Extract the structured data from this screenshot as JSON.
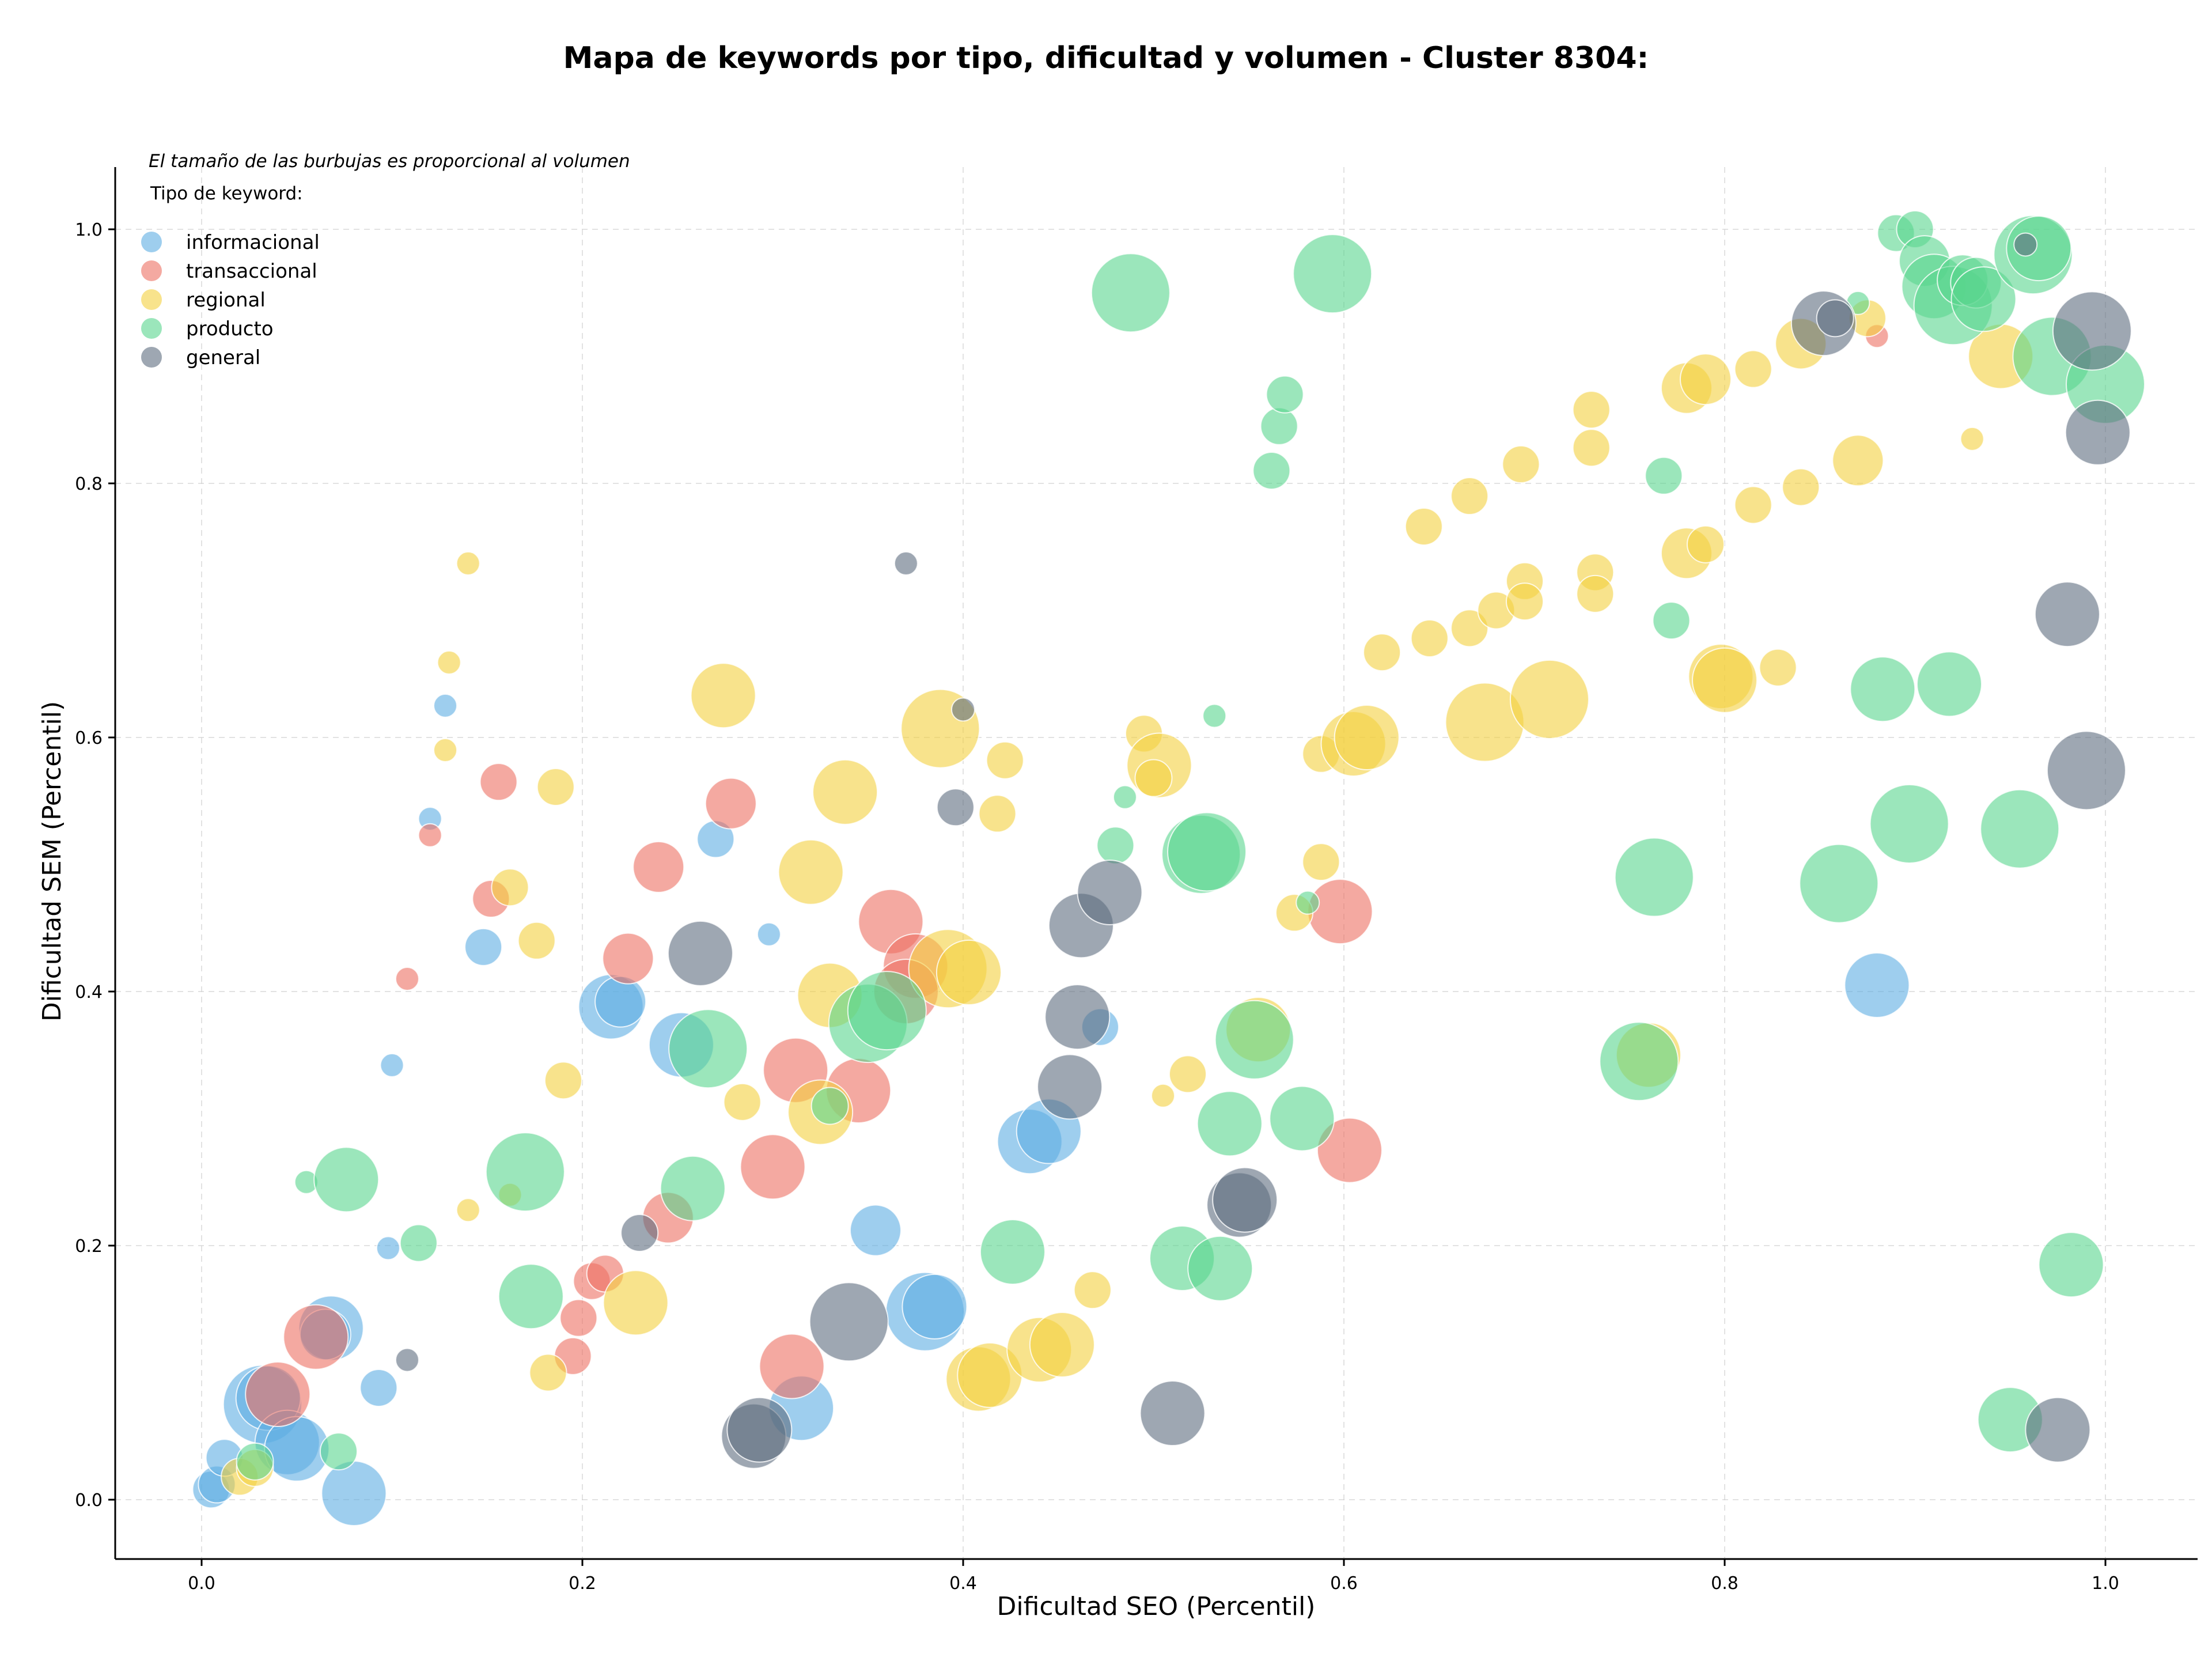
{
  "chart_data": {
    "type": "scatter",
    "title": "Mapa de keywords por tipo, dificultad y volumen - Cluster 8304:",
    "xlabel": "Dificultad SEO (Percentil)",
    "ylabel": "Dificultad SEM (Percentil)",
    "xlim": [
      -0.045,
      1.05
    ],
    "ylim": [
      -0.045,
      1.05
    ],
    "xticks": [
      0.0,
      0.2,
      0.4,
      0.6,
      0.8,
      1.0
    ],
    "yticks": [
      0.0,
      0.2,
      0.4,
      0.6,
      0.8,
      1.0
    ],
    "xtick_labels": [
      "0.0",
      "0.2",
      "0.4",
      "0.6",
      "0.8",
      "1.0"
    ],
    "ytick_labels": [
      "0.0",
      "0.2",
      "0.4",
      "0.6",
      "0.8",
      "1.0"
    ],
    "grid": true,
    "legend_placement": "top-left",
    "legend_note": "El tamaño de las burbujas es proporcional al volumen",
    "legend_title": "Tipo de keyword:",
    "series": [
      {
        "name": "informacional",
        "color": "#5DADE2",
        "points": [
          [
            0.005,
            0.008,
            2
          ],
          [
            0.008,
            0.012,
            2
          ],
          [
            0.012,
            0.033,
            2
          ],
          [
            0.032,
            0.075,
            5
          ],
          [
            0.035,
            0.08,
            4
          ],
          [
            0.045,
            0.045,
            4
          ],
          [
            0.05,
            0.04,
            4
          ],
          [
            0.068,
            0.135,
            4
          ],
          [
            0.065,
            0.13,
            3
          ],
          [
            0.08,
            0.005,
            4
          ],
          [
            0.093,
            0.088,
            2
          ],
          [
            0.098,
            0.198,
            1
          ],
          [
            0.1,
            0.342,
            1
          ],
          [
            0.128,
            0.625,
            1
          ],
          [
            0.12,
            0.536,
            1
          ],
          [
            0.148,
            0.435,
            2
          ],
          [
            0.215,
            0.388,
            4
          ],
          [
            0.22,
            0.392,
            3
          ],
          [
            0.252,
            0.358,
            4
          ],
          [
            0.27,
            0.52,
            2
          ],
          [
            0.298,
            0.445,
            1
          ],
          [
            0.315,
            0.072,
            4
          ],
          [
            0.354,
            0.212,
            3
          ],
          [
            0.38,
            0.148,
            5
          ],
          [
            0.385,
            0.152,
            4
          ],
          [
            0.435,
            0.282,
            4
          ],
          [
            0.445,
            0.29,
            4
          ],
          [
            0.472,
            0.372,
            2
          ],
          [
            0.88,
            0.405,
            4
          ]
        ]
      },
      {
        "name": "transaccional",
        "color": "#EC7063",
        "points": [
          [
            0.04,
            0.083,
            4
          ],
          [
            0.06,
            0.128,
            4
          ],
          [
            0.108,
            0.41,
            1
          ],
          [
            0.12,
            0.523,
            1
          ],
          [
            0.152,
            0.473,
            2
          ],
          [
            0.156,
            0.565,
            2
          ],
          [
            0.195,
            0.113,
            2
          ],
          [
            0.198,
            0.143,
            2
          ],
          [
            0.205,
            0.172,
            2
          ],
          [
            0.212,
            0.178,
            2
          ],
          [
            0.224,
            0.426,
            3
          ],
          [
            0.24,
            0.498,
            3
          ],
          [
            0.245,
            0.222,
            3
          ],
          [
            0.278,
            0.548,
            3
          ],
          [
            0.3,
            0.262,
            4
          ],
          [
            0.31,
            0.105,
            4
          ],
          [
            0.312,
            0.338,
            4
          ],
          [
            0.345,
            0.322,
            4
          ],
          [
            0.362,
            0.455,
            4
          ],
          [
            0.375,
            0.42,
            4
          ],
          [
            0.37,
            0.4,
            4
          ],
          [
            0.598,
            0.463,
            4
          ],
          [
            0.603,
            0.275,
            4
          ],
          [
            0.88,
            0.916,
            1
          ]
        ]
      },
      {
        "name": "regional",
        "color": "#F4D03F",
        "points": [
          [
            0.02,
            0.018,
            2
          ],
          [
            0.028,
            0.025,
            2
          ],
          [
            0.14,
            0.737,
            1
          ],
          [
            0.13,
            0.659,
            1
          ],
          [
            0.128,
            0.59,
            1
          ],
          [
            0.14,
            0.228,
            1
          ],
          [
            0.162,
            0.24,
            1
          ],
          [
            0.162,
            0.482,
            2
          ],
          [
            0.176,
            0.44,
            2
          ],
          [
            0.186,
            0.561,
            2
          ],
          [
            0.182,
            0.1,
            2
          ],
          [
            0.19,
            0.33,
            2
          ],
          [
            0.228,
            0.155,
            4
          ],
          [
            0.274,
            0.633,
            4
          ],
          [
            0.284,
            0.313,
            2
          ],
          [
            0.32,
            0.494,
            4
          ],
          [
            0.325,
            0.305,
            4
          ],
          [
            0.33,
            0.397,
            4
          ],
          [
            0.338,
            0.557,
            4
          ],
          [
            0.388,
            0.607,
            5
          ],
          [
            0.392,
            0.418,
            5
          ],
          [
            0.403,
            0.415,
            4
          ],
          [
            0.408,
            0.095,
            4
          ],
          [
            0.414,
            0.098,
            4
          ],
          [
            0.418,
            0.54,
            2
          ],
          [
            0.422,
            0.582,
            2
          ],
          [
            0.44,
            0.118,
            4
          ],
          [
            0.452,
            0.122,
            4
          ],
          [
            0.468,
            0.165,
            2
          ],
          [
            0.495,
            0.603,
            2
          ],
          [
            0.503,
            0.578,
            4
          ],
          [
            0.5,
            0.568,
            2
          ],
          [
            0.505,
            0.318,
            1
          ],
          [
            0.518,
            0.335,
            2
          ],
          [
            0.555,
            0.37,
            4
          ],
          [
            0.574,
            0.462,
            2
          ],
          [
            0.588,
            0.587,
            2
          ],
          [
            0.588,
            0.502,
            2
          ],
          [
            0.605,
            0.595,
            4
          ],
          [
            0.612,
            0.6,
            4
          ],
          [
            0.62,
            0.667,
            2
          ],
          [
            0.642,
            0.766,
            2
          ],
          [
            0.645,
            0.678,
            2
          ],
          [
            0.666,
            0.79,
            2
          ],
          [
            0.666,
            0.686,
            2
          ],
          [
            0.674,
            0.612,
            5
          ],
          [
            0.68,
            0.7,
            2
          ],
          [
            0.693,
            0.815,
            2
          ],
          [
            0.695,
            0.723,
            2
          ],
          [
            0.695,
            0.707,
            2
          ],
          [
            0.708,
            0.63,
            5
          ],
          [
            0.73,
            0.858,
            2
          ],
          [
            0.73,
            0.828,
            2
          ],
          [
            0.732,
            0.73,
            2
          ],
          [
            0.732,
            0.713,
            2
          ],
          [
            0.76,
            0.35,
            4
          ],
          [
            0.78,
            0.745,
            3
          ],
          [
            0.78,
            0.875,
            3
          ],
          [
            0.79,
            0.882,
            3
          ],
          [
            0.79,
            0.752,
            2
          ],
          [
            0.798,
            0.648,
            4
          ],
          [
            0.8,
            0.645,
            4
          ],
          [
            0.815,
            0.89,
            2
          ],
          [
            0.815,
            0.783,
            2
          ],
          [
            0.828,
            0.655,
            2
          ],
          [
            0.84,
            0.91,
            3
          ],
          [
            0.84,
            0.797,
            2
          ],
          [
            0.87,
            0.818,
            3
          ],
          [
            0.875,
            0.93,
            2
          ],
          [
            0.93,
            0.835,
            1
          ],
          [
            0.945,
            0.9,
            4
          ]
        ]
      },
      {
        "name": "producto",
        "color": "#58D68D",
        "points": [
          [
            0.028,
            0.03,
            2
          ],
          [
            0.055,
            0.25,
            1
          ],
          [
            0.072,
            0.038,
            2
          ],
          [
            0.076,
            0.252,
            4
          ],
          [
            0.114,
            0.202,
            2
          ],
          [
            0.17,
            0.258,
            5
          ],
          [
            0.173,
            0.16,
            4
          ],
          [
            0.258,
            0.245,
            4
          ],
          [
            0.266,
            0.355,
            5
          ],
          [
            0.33,
            0.31,
            2
          ],
          [
            0.35,
            0.375,
            5
          ],
          [
            0.36,
            0.385,
            5
          ],
          [
            0.426,
            0.195,
            4
          ],
          [
            0.48,
            0.515,
            2
          ],
          [
            0.485,
            0.553,
            1
          ],
          [
            0.488,
            0.95,
            5
          ],
          [
            0.515,
            0.19,
            4
          ],
          [
            0.525,
            0.508,
            5
          ],
          [
            0.528,
            0.51,
            5
          ],
          [
            0.532,
            0.617,
            1
          ],
          [
            0.535,
            0.182,
            4
          ],
          [
            0.54,
            0.296,
            4
          ],
          [
            0.553,
            0.362,
            5
          ],
          [
            0.562,
            0.81,
            2
          ],
          [
            0.566,
            0.845,
            2
          ],
          [
            0.569,
            0.87,
            2
          ],
          [
            0.578,
            0.3,
            4
          ],
          [
            0.581,
            0.47,
            1
          ],
          [
            0.594,
            0.965,
            5
          ],
          [
            0.755,
            0.345,
            5
          ],
          [
            0.763,
            0.49,
            5
          ],
          [
            0.768,
            0.806,
            2
          ],
          [
            0.772,
            0.692,
            2
          ],
          [
            0.86,
            0.485,
            5
          ],
          [
            0.87,
            0.942,
            1
          ],
          [
            0.883,
            0.638,
            4
          ],
          [
            0.89,
            0.997,
            2
          ],
          [
            0.897,
            0.532,
            5
          ],
          [
            0.9,
            1.0,
            2
          ],
          [
            0.905,
            0.975,
            3
          ],
          [
            0.91,
            0.955,
            4
          ],
          [
            0.918,
            0.642,
            4
          ],
          [
            0.92,
            0.94,
            5
          ],
          [
            0.925,
            0.96,
            3
          ],
          [
            0.932,
            0.958,
            3
          ],
          [
            0.936,
            0.945,
            4
          ],
          [
            0.955,
            0.528,
            5
          ],
          [
            0.95,
            0.063,
            4
          ],
          [
            0.962,
            0.98,
            5
          ],
          [
            0.965,
            0.985,
            4
          ],
          [
            0.972,
            0.9,
            5
          ],
          [
            0.982,
            0.185,
            4
          ],
          [
            1.0,
            0.878,
            5
          ]
        ]
      },
      {
        "name": "general",
        "color": "#5D6D7E",
        "points": [
          [
            0.108,
            0.11,
            1
          ],
          [
            0.23,
            0.21,
            2
          ],
          [
            0.262,
            0.43,
            4
          ],
          [
            0.29,
            0.05,
            4
          ],
          [
            0.293,
            0.055,
            4
          ],
          [
            0.34,
            0.14,
            5
          ],
          [
            0.37,
            0.737,
            1
          ],
          [
            0.396,
            0.545,
            2
          ],
          [
            0.4,
            0.622,
            1
          ],
          [
            0.462,
            0.452,
            4
          ],
          [
            0.46,
            0.38,
            4
          ],
          [
            0.456,
            0.325,
            4
          ],
          [
            0.477,
            0.478,
            4
          ],
          [
            0.51,
            0.068,
            4
          ],
          [
            0.545,
            0.232,
            4
          ],
          [
            0.548,
            0.236,
            4
          ],
          [
            0.852,
            0.926,
            4
          ],
          [
            0.858,
            0.93,
            2
          ],
          [
            0.958,
            0.988,
            1
          ],
          [
            0.98,
            0.697,
            4
          ],
          [
            0.975,
            0.055,
            4
          ],
          [
            0.99,
            0.574,
            5
          ],
          [
            0.993,
            0.92,
            5
          ],
          [
            0.996,
            0.84,
            4
          ]
        ]
      }
    ]
  }
}
